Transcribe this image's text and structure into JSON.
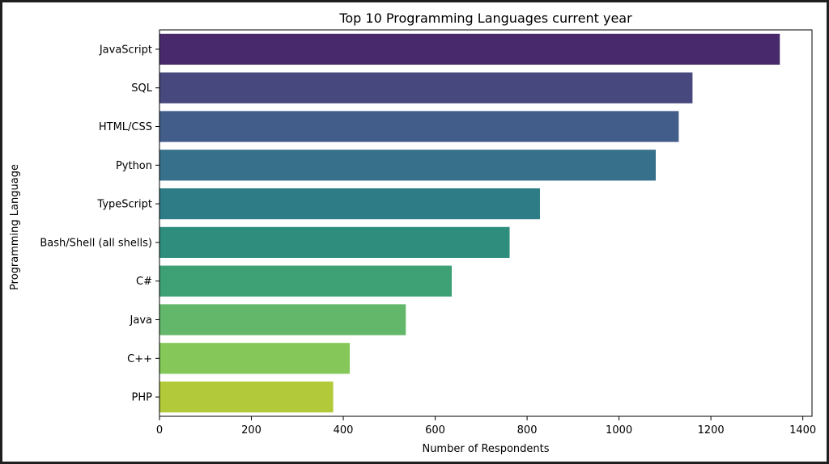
{
  "chart_data": {
    "type": "bar",
    "orientation": "horizontal",
    "title": "Top 10 Programming Languages current year",
    "xlabel": "Number of Respondents",
    "ylabel": "Programming Language",
    "categories": [
      "JavaScript",
      "SQL",
      "HTML/CSS",
      "Python",
      "TypeScript",
      "Bash/Shell (all shells)",
      "C#",
      "Java",
      "C++",
      "PHP"
    ],
    "values": [
      1350,
      1160,
      1130,
      1080,
      828,
      762,
      636,
      536,
      414,
      378
    ],
    "colors": [
      "#482a6c",
      "#47487d",
      "#425d8a",
      "#37708a",
      "#2e7d86",
      "#2f8d7e",
      "#3da175",
      "#63b76b",
      "#85c759",
      "#b2ca39"
    ],
    "xlim": [
      0,
      1420
    ],
    "xticks": [
      0,
      200,
      400,
      600,
      800,
      1000,
      1200,
      1400
    ],
    "grid": false,
    "legend": "none"
  }
}
